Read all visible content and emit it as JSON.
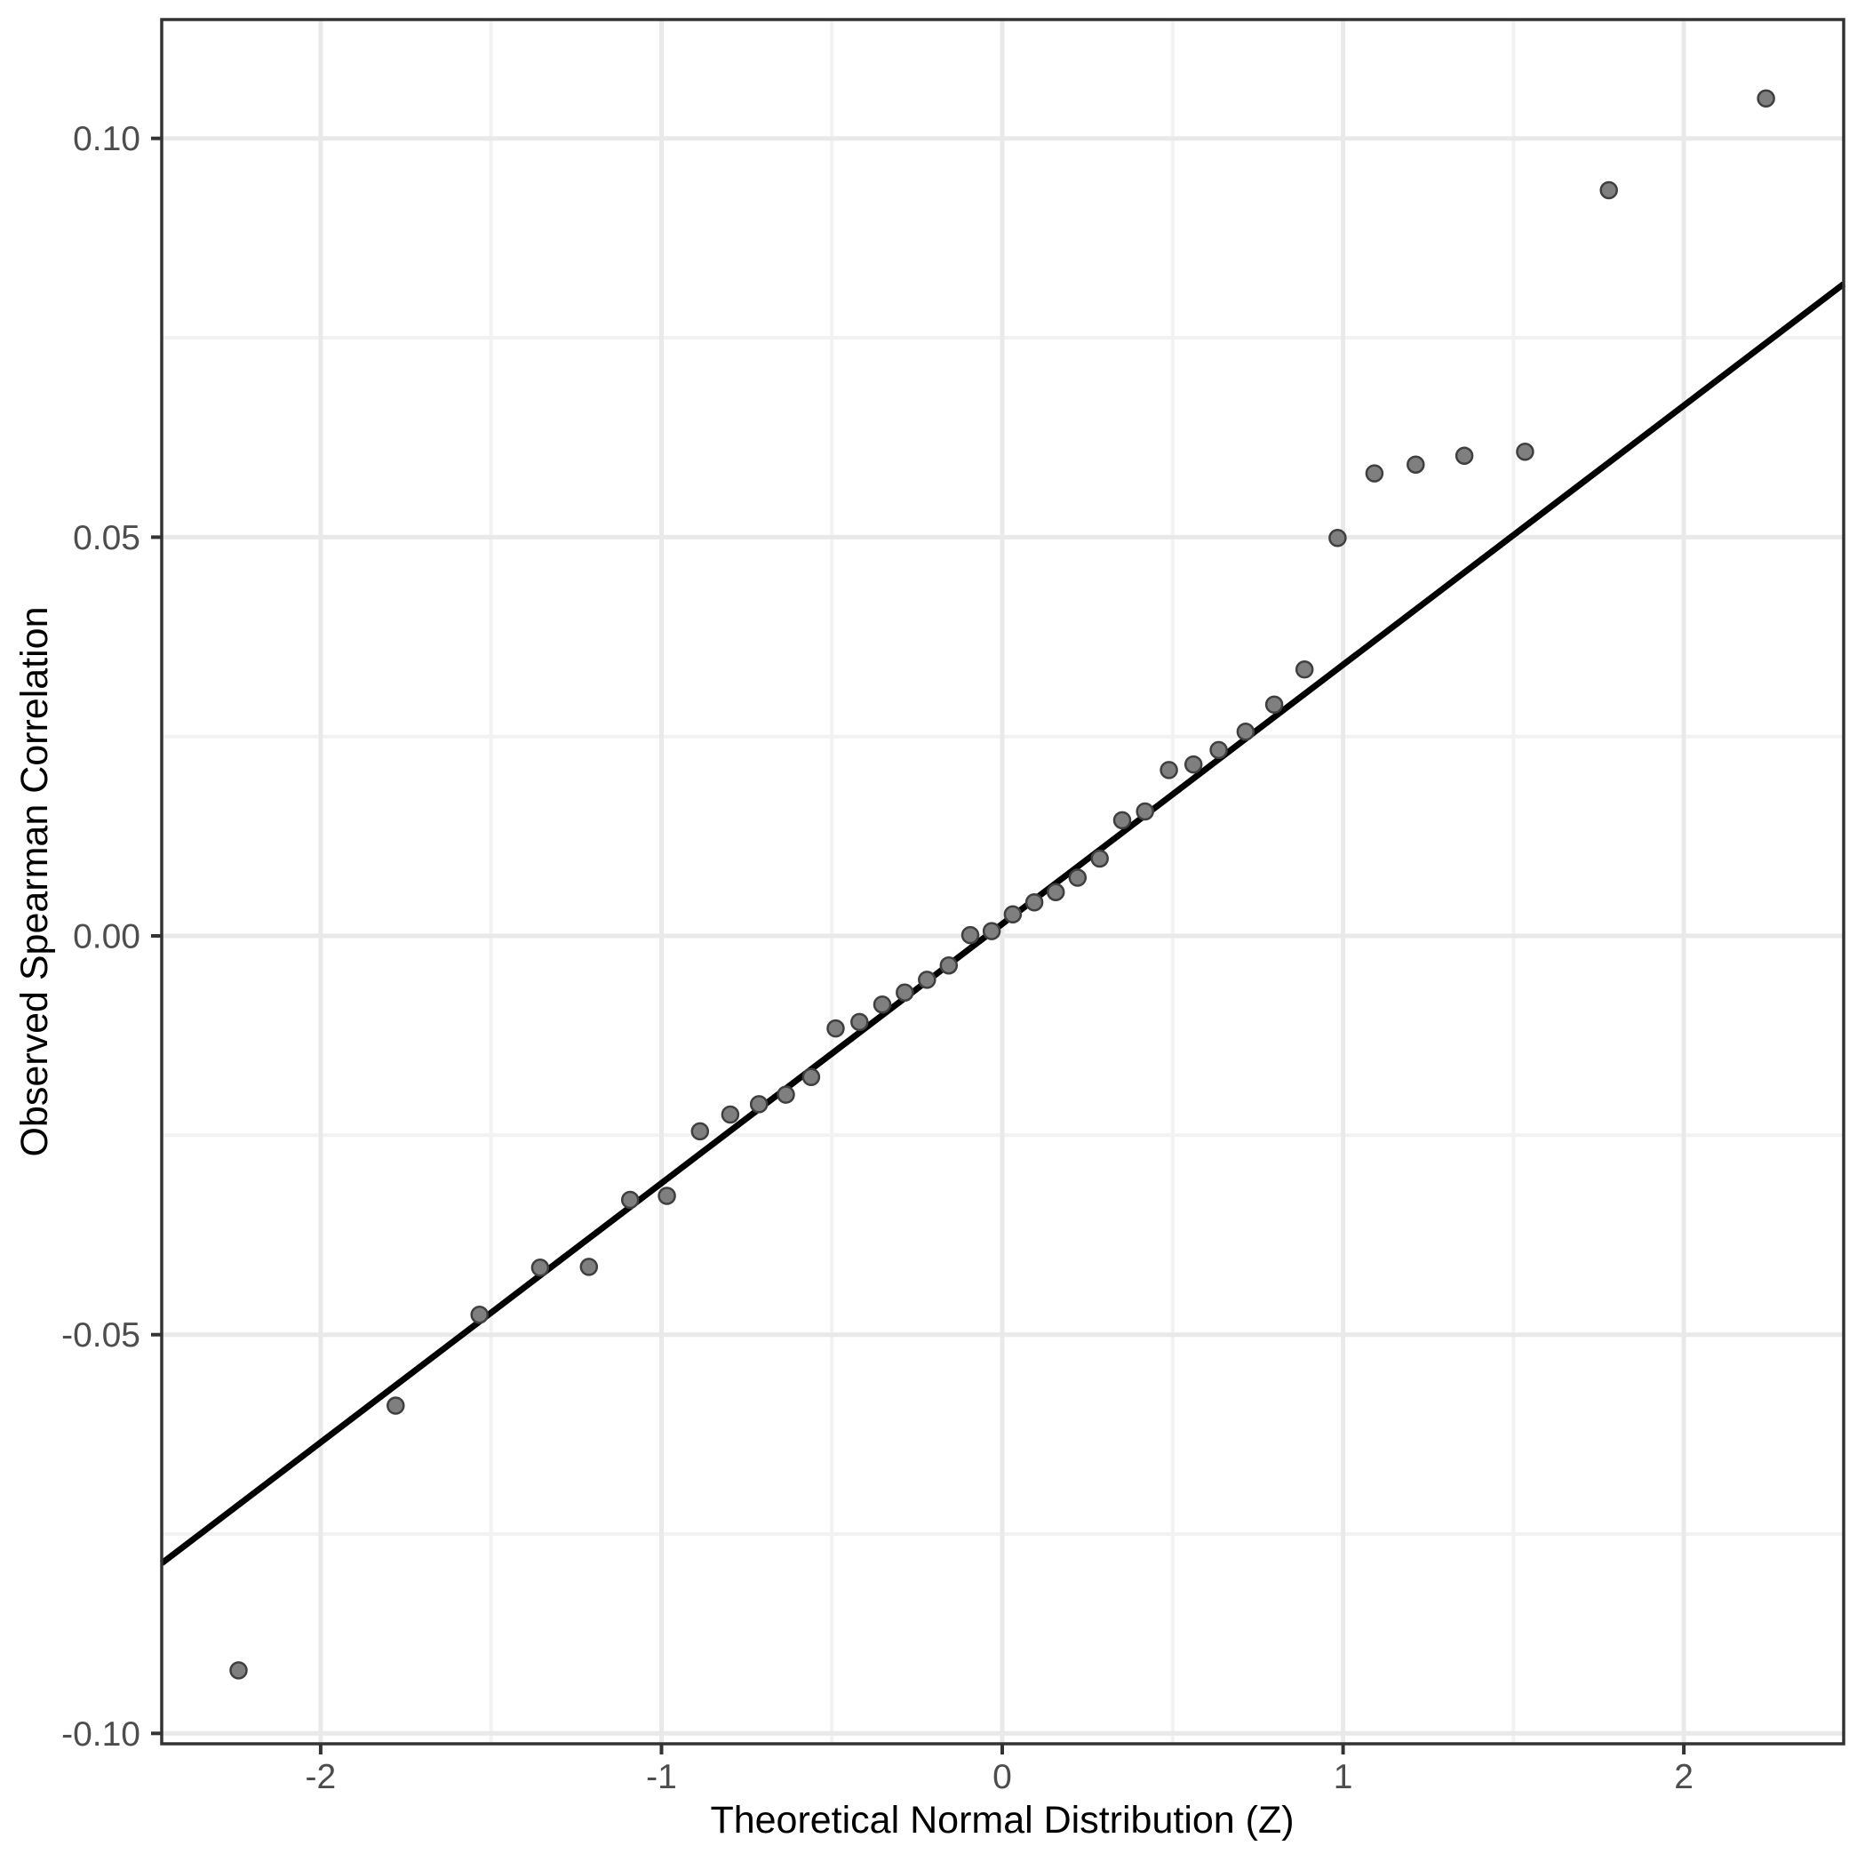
{
  "chart_data": {
    "type": "scatter",
    "title": "",
    "xlabel": "Theoretical Normal Distribution (Z)",
    "ylabel": "Observed Spearman Correlation",
    "xlim": [
      -2.4665,
      2.469
    ],
    "ylim": [
      -0.1013,
      0.1149
    ],
    "x_major_ticks": [
      {
        "v": -2,
        "label": "-2"
      },
      {
        "v": -1,
        "label": "-1"
      },
      {
        "v": 0,
        "label": "0"
      },
      {
        "v": 1,
        "label": "1"
      },
      {
        "v": 2,
        "label": "2"
      }
    ],
    "y_major_ticks": [
      {
        "v": 0.1,
        "label": "0.10"
      },
      {
        "v": 0.05,
        "label": "0.05"
      },
      {
        "v": 0.0,
        "label": "0.00"
      },
      {
        "v": -0.05,
        "label": "-0.05"
      },
      {
        "v": -0.1,
        "label": "-0.10"
      }
    ],
    "x_minor_ticks": [
      -1.5,
      -0.5,
      0.5,
      1.5
    ],
    "y_minor_ticks": [
      -0.075,
      -0.025,
      0.025,
      0.075
    ],
    "grid": true,
    "legend": false,
    "reference_line": {
      "slope": 0.0325,
      "intercept": 0.0015
    },
    "points": [
      [
        -2.241,
        -0.0921
      ],
      [
        -1.78,
        -0.0589
      ],
      [
        -1.534,
        -0.0475
      ],
      [
        -1.356,
        -0.0416
      ],
      [
        -1.213,
        -0.0415
      ],
      [
        -1.092,
        -0.0331
      ],
      [
        -0.984,
        -0.0326
      ],
      [
        -0.887,
        -0.0245
      ],
      [
        -0.798,
        -0.0224
      ],
      [
        -0.714,
        -0.0211
      ],
      [
        -0.635,
        -0.0199
      ],
      [
        -0.561,
        -0.0177
      ],
      [
        -0.489,
        -0.0116
      ],
      [
        -0.419,
        -0.0108
      ],
      [
        -0.352,
        -0.0086
      ],
      [
        -0.286,
        -0.0071
      ],
      [
        -0.221,
        -0.0055
      ],
      [
        -0.157,
        -0.0037
      ],
      [
        -0.094,
        0.0001
      ],
      [
        -0.031,
        0.0006
      ],
      [
        0.031,
        0.0027
      ],
      [
        0.094,
        0.0042
      ],
      [
        0.157,
        0.0055
      ],
      [
        0.221,
        0.0073
      ],
      [
        0.286,
        0.0097
      ],
      [
        0.352,
        0.0145
      ],
      [
        0.419,
        0.0156
      ],
      [
        0.489,
        0.0208
      ],
      [
        0.561,
        0.0215
      ],
      [
        0.635,
        0.0233
      ],
      [
        0.714,
        0.0256
      ],
      [
        0.798,
        0.029
      ],
      [
        0.887,
        0.0334
      ],
      [
        0.984,
        0.0499
      ],
      [
        1.092,
        0.058
      ],
      [
        1.213,
        0.0591
      ],
      [
        1.356,
        0.0602
      ],
      [
        1.534,
        0.0607
      ],
      [
        1.78,
        0.0935
      ],
      [
        2.241,
        0.105
      ]
    ],
    "colors": {
      "background": "#FFFFFF",
      "panel_background": "#FFFFFF",
      "grid_major": "#E9E9E9",
      "grid_minor": "#F2F2F2",
      "panel_border": "#333333",
      "tick_mark": "#333333",
      "tick_label": "#4D4D4D",
      "axis_title": "#000000",
      "point_fill": "#7F7F7F",
      "point_stroke": "#3F3F3F",
      "reference_line": "#000000"
    }
  }
}
